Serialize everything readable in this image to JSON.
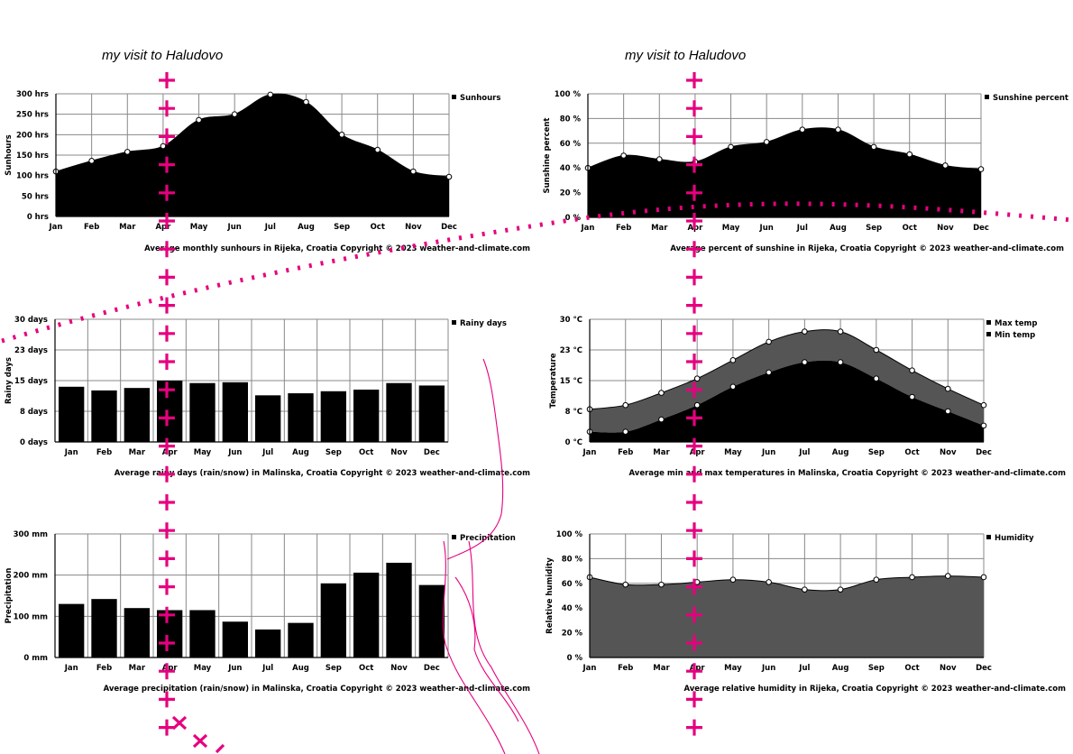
{
  "header": {
    "left_title": "my visit to Haludovo",
    "right_title": "my visit to Haludovo"
  },
  "colors": {
    "overlay": "#e6007e",
    "fill_dark": "#000000",
    "fill_gray": "#555555",
    "grid": "#888888"
  },
  "chart_data": [
    {
      "id": "sunhours",
      "type": "area",
      "categories": [
        "Jan",
        "Feb",
        "Mar",
        "Apr",
        "May",
        "Jun",
        "Jul",
        "Aug",
        "Sep",
        "Oct",
        "Nov",
        "Dec"
      ],
      "series": [
        {
          "name": "Sunhours",
          "values": [
            110,
            136,
            158,
            172,
            236,
            250,
            298,
            280,
            200,
            163,
            110,
            97
          ]
        }
      ],
      "ylabel": "Sunhours",
      "ylim": [
        0,
        300
      ],
      "yticks": [
        "0 hrs",
        "50 hrs",
        "100 hrs",
        "150 hrs",
        "200 hrs",
        "250 hrs",
        "300 hrs"
      ],
      "caption": "Average monthly sunhours in Rijeka, Croatia   Copyright © 2023  weather-and-climate.com",
      "grid": true,
      "legend": "top-right"
    },
    {
      "id": "sunpercent",
      "type": "area",
      "categories": [
        "Jan",
        "Feb",
        "Mar",
        "Apr",
        "May",
        "Jun",
        "Jul",
        "Aug",
        "Sep",
        "Oct",
        "Nov",
        "Dec"
      ],
      "series": [
        {
          "name": "Sunshine percent",
          "values": [
            40,
            50,
            47,
            45,
            57,
            61,
            71,
            71,
            57,
            51,
            42,
            39
          ]
        }
      ],
      "ylabel": "Sunshine percent",
      "ylim": [
        0,
        100
      ],
      "yticks": [
        "0 %",
        "20 %",
        "40 %",
        "60 %",
        "80 %",
        "100 %"
      ],
      "caption": "Average percent of sunshine in Rijeka, Croatia   Copyright © 2023  weather-and-climate.com",
      "grid": true,
      "legend": "top-right"
    },
    {
      "id": "rainydays",
      "type": "bar",
      "categories": [
        "Jan",
        "Feb",
        "Mar",
        "Apr",
        "May",
        "Jun",
        "Jul",
        "Aug",
        "Sep",
        "Oct",
        "Nov",
        "Dec"
      ],
      "series": [
        {
          "name": "Rainy days",
          "values": [
            13.5,
            12.6,
            13.2,
            15.0,
            14.4,
            14.6,
            11.4,
            11.9,
            12.4,
            12.8,
            14.4,
            13.8
          ]
        }
      ],
      "ylabel": "Rainy days",
      "ylim": [
        0,
        30
      ],
      "yticks": [
        "0 days",
        "8 days",
        "15 days",
        "23 days",
        "30 days"
      ],
      "caption": "Average rainy days (rain/snow) in Malinska, Croatia   Copyright © 2023  weather-and-climate.com",
      "grid": true,
      "legend": "top-right"
    },
    {
      "id": "temperature",
      "type": "area",
      "categories": [
        "Jan",
        "Feb",
        "Mar",
        "Apr",
        "May",
        "Jun",
        "Jul",
        "Aug",
        "Sep",
        "Oct",
        "Nov",
        "Dec"
      ],
      "series": [
        {
          "name": "Max temp",
          "values": [
            8,
            9,
            12,
            15.5,
            20,
            24.5,
            27,
            27,
            22.5,
            17.5,
            13,
            9
          ]
        },
        {
          "name": "Min temp",
          "values": [
            2.5,
            2.5,
            5.5,
            9,
            13.5,
            17,
            19.5,
            19.5,
            15.5,
            11,
            7.5,
            4
          ]
        }
      ],
      "ylabel": "Temperature",
      "ylim": [
        0,
        30
      ],
      "yticks": [
        "0 °C",
        "8 °C",
        "15 °C",
        "23 °C",
        "30 °C"
      ],
      "caption": "Average min and max temperatures in Malinska, Croatia   Copyright © 2023  weather-and-climate.com",
      "grid": true,
      "legend": "top-right"
    },
    {
      "id": "precipitation",
      "type": "bar",
      "categories": [
        "Jan",
        "Feb",
        "Mar",
        "Apr",
        "May",
        "Jun",
        "Jul",
        "Aug",
        "Sep",
        "Oct",
        "Nov",
        "Dec"
      ],
      "series": [
        {
          "name": "Precipitation",
          "values": [
            130,
            142,
            120,
            115,
            115,
            87,
            68,
            84,
            180,
            206,
            230,
            176
          ]
        }
      ],
      "ylabel": "Precipitation",
      "ylim": [
        0,
        300
      ],
      "yticks": [
        "0 mm",
        "100 mm",
        "200 mm",
        "300 mm"
      ],
      "caption": "Average precipitation (rain/snow) in Malinska, Croatia   Copyright © 2023  weather-and-climate.com",
      "grid": true,
      "legend": "top-right"
    },
    {
      "id": "humidity",
      "type": "area",
      "categories": [
        "Jan",
        "Feb",
        "Mar",
        "Apr",
        "May",
        "Jun",
        "Jul",
        "Aug",
        "Sep",
        "Oct",
        "Nov",
        "Dec"
      ],
      "series": [
        {
          "name": "Humidity",
          "values": [
            65,
            59,
            59,
            61,
            63,
            61,
            55,
            55,
            63,
            65,
            66,
            65
          ]
        }
      ],
      "ylabel": "Relative humidity",
      "ylim": [
        0,
        100
      ],
      "yticks": [
        "0 %",
        "20 %",
        "40 %",
        "60 %",
        "80 %",
        "100 %"
      ],
      "caption": "Average relative humidity in Rijeka, Croatia   Copyright © 2023  weather-and-climate.com",
      "grid": true,
      "legend": "top-right"
    }
  ]
}
